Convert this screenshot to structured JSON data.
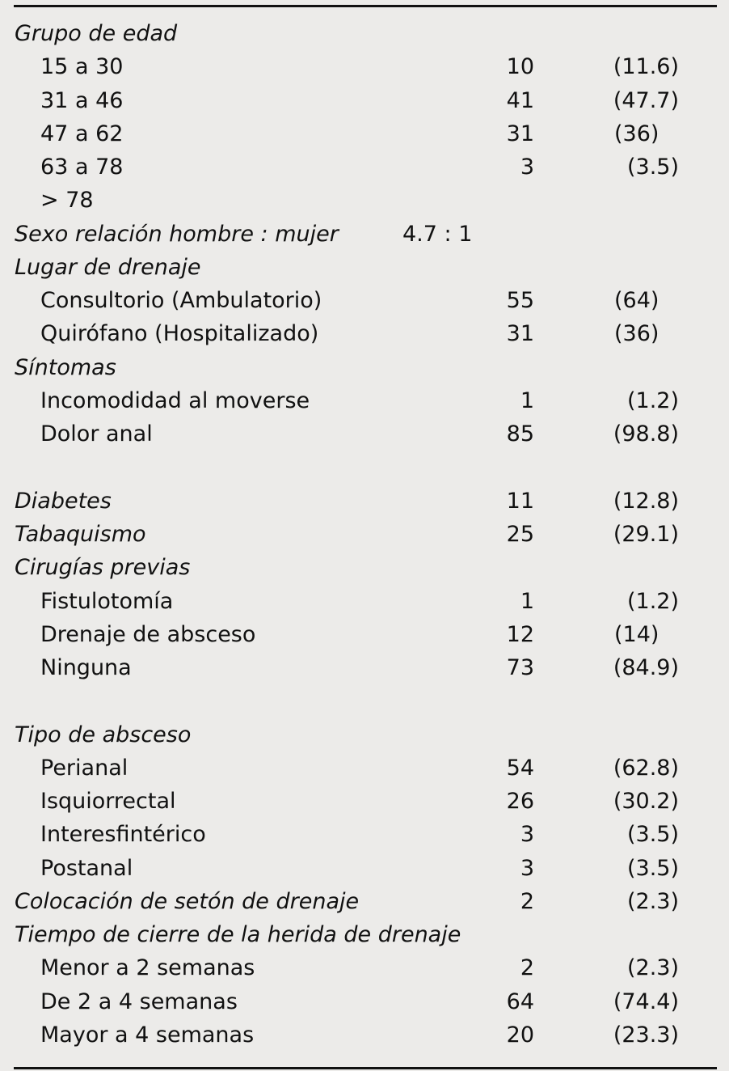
{
  "rows": [
    {
      "type": "header",
      "label": "Grupo de edad"
    },
    {
      "type": "item",
      "label": "15 a 30",
      "count": "10",
      "pct": "(11.6)"
    },
    {
      "type": "item",
      "label": "31 a 46",
      "count": "41",
      "pct": "(47.7)"
    },
    {
      "type": "item",
      "label": "47 a 62",
      "count": "31",
      "pct": "(36)"
    },
    {
      "type": "item",
      "label": "63 a 78",
      "count": "3",
      "pct": "(3.5)"
    },
    {
      "type": "item",
      "label": "> 78"
    },
    {
      "type": "header",
      "label": "Sexo relación hombre : mujer",
      "ratio": "4.7 : 1"
    },
    {
      "type": "header",
      "label": "Lugar de drenaje"
    },
    {
      "type": "item",
      "label": "Consultorio (Ambulatorio)",
      "count": "55",
      "pct": "(64)"
    },
    {
      "type": "item",
      "label": "Quirófano (Hospitalizado)",
      "count": "31",
      "pct": "(36)"
    },
    {
      "type": "header",
      "label": "Síntomas"
    },
    {
      "type": "item",
      "label": "Incomodidad al moverse",
      "count": "1",
      "pct": "(1.2)"
    },
    {
      "type": "item",
      "label": "Dolor anal",
      "count": "85",
      "pct": "(98.8)"
    },
    {
      "type": "blank"
    },
    {
      "type": "header",
      "label": "Diabetes",
      "count": "11",
      "pct": "(12.8)"
    },
    {
      "type": "header",
      "label": "Tabaquismo",
      "count": "25",
      "pct": "(29.1)"
    },
    {
      "type": "header",
      "label": "Cirugías previas"
    },
    {
      "type": "item",
      "label": "Fistulotomía",
      "count": "1",
      "pct": "(1.2)"
    },
    {
      "type": "item",
      "label": "Drenaje de absceso",
      "count": "12",
      "pct": "(14)"
    },
    {
      "type": "item",
      "label": "Ninguna",
      "count": "73",
      "pct": "(84.9)"
    },
    {
      "type": "blank"
    },
    {
      "type": "header",
      "label": "Tipo de absceso"
    },
    {
      "type": "item",
      "label": "Perianal",
      "count": "54",
      "pct": "(62.8)"
    },
    {
      "type": "item",
      "label": "Isquiorrectal",
      "count": "26",
      "pct": "(30.2)"
    },
    {
      "type": "item",
      "label": "Interesfintérico",
      "count": "3",
      "pct": "(3.5)"
    },
    {
      "type": "item",
      "label": "Postanal",
      "count": "3",
      "pct": "(3.5)"
    },
    {
      "type": "header",
      "label": "Colocación de setón de drenaje",
      "count": "2",
      "pct": "(2.3)"
    },
    {
      "type": "header",
      "label": "Tiempo de cierre de la herida de drenaje"
    },
    {
      "type": "item",
      "label": "Menor a 2 semanas",
      "count": "2",
      "pct": "(2.3)"
    },
    {
      "type": "item",
      "label": "De 2 a 4 semanas",
      "count": "64",
      "pct": "(74.4)"
    },
    {
      "type": "item",
      "label": "Mayor a 4 semanas",
      "count": "20",
      "pct": "(23.3)"
    }
  ]
}
